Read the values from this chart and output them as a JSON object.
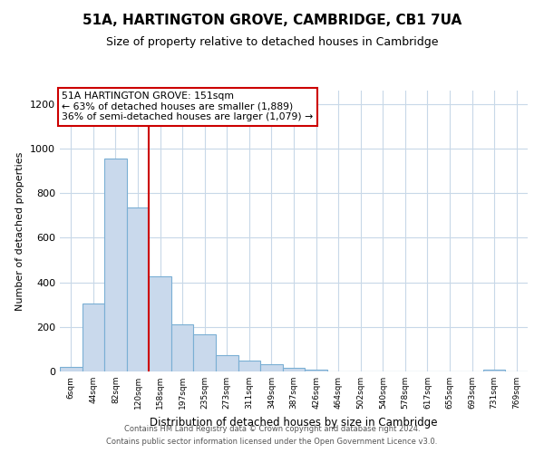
{
  "title": "51A, HARTINGTON GROVE, CAMBRIDGE, CB1 7UA",
  "subtitle": "Size of property relative to detached houses in Cambridge",
  "xlabel": "Distribution of detached houses by size in Cambridge",
  "ylabel": "Number of detached properties",
  "bar_labels": [
    "6sqm",
    "44sqm",
    "82sqm",
    "120sqm",
    "158sqm",
    "197sqm",
    "235sqm",
    "273sqm",
    "311sqm",
    "349sqm",
    "387sqm",
    "426sqm",
    "464sqm",
    "502sqm",
    "540sqm",
    "578sqm",
    "617sqm",
    "655sqm",
    "693sqm",
    "731sqm",
    "769sqm"
  ],
  "bar_values": [
    20,
    305,
    955,
    735,
    425,
    210,
    165,
    75,
    48,
    33,
    18,
    8,
    0,
    0,
    0,
    0,
    0,
    0,
    0,
    8,
    0
  ],
  "bar_color": "#c9d9ec",
  "bar_edge_color": "#7aafd4",
  "vline_x": 4,
  "vline_color": "#cc0000",
  "annotation_title": "51A HARTINGTON GROVE: 151sqm",
  "annotation_line1": "← 63% of detached houses are smaller (1,889)",
  "annotation_line2": "36% of semi-detached houses are larger (1,079) →",
  "annotation_box_color": "#ffffff",
  "annotation_box_edge_color": "#cc0000",
  "ylim": [
    0,
    1260
  ],
  "yticks": [
    0,
    200,
    400,
    600,
    800,
    1000,
    1200
  ],
  "footer_line1": "Contains HM Land Registry data © Crown copyright and database right 2024.",
  "footer_line2": "Contains public sector information licensed under the Open Government Licence v3.0.",
  "bg_color": "#ffffff",
  "grid_color": "#c8d8e8"
}
